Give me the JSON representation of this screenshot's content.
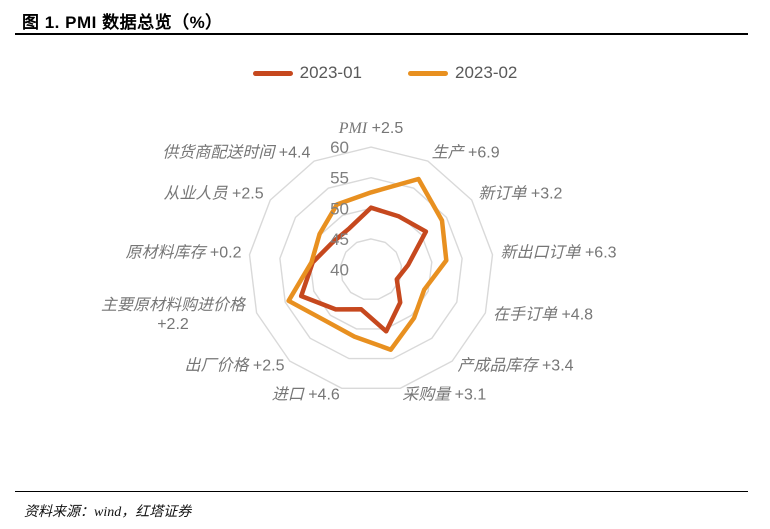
{
  "figure": {
    "title": "图 1. PMI 数据总览（%）",
    "source": "资料来源：wind，红塔证券"
  },
  "legend": [
    {
      "label": "2023-01",
      "color": "#C6481E"
    },
    {
      "label": "2023-02",
      "color": "#E89020"
    }
  ],
  "chart_data": {
    "type": "radar",
    "categories": [
      {
        "name": "PMI",
        "delta": "+2.5"
      },
      {
        "name": "生产",
        "delta": "+6.9"
      },
      {
        "name": "新订单",
        "delta": "+3.2"
      },
      {
        "name": "新出口订单",
        "delta": "+6.3"
      },
      {
        "name": "在手订单",
        "delta": "+4.8"
      },
      {
        "name": "产成品库存",
        "delta": "+3.4"
      },
      {
        "name": "采购量",
        "delta": "+3.1"
      },
      {
        "name": "进口",
        "delta": "+4.6"
      },
      {
        "name": "出厂价格",
        "delta": "+2.5"
      },
      {
        "name": "主要原材料购进价格",
        "delta": "+2.2"
      },
      {
        "name": "原材料库存",
        "delta": "+0.2"
      },
      {
        "name": "从业人员",
        "delta": "+2.5"
      },
      {
        "name": "供货商配送时间",
        "delta": "+4.4"
      }
    ],
    "series": [
      {
        "name": "2023-01",
        "color": "#C6481E",
        "values": [
          50.1,
          49.8,
          50.9,
          46.1,
          44.5,
          47.2,
          50.4,
          46.7,
          48.7,
          52.2,
          49.6,
          47.7,
          47.6
        ]
      },
      {
        "name": "2023-02",
        "color": "#E89020",
        "values": [
          52.6,
          56.7,
          54.1,
          52.4,
          49.3,
          50.6,
          53.5,
          51.3,
          51.2,
          54.4,
          49.8,
          50.2,
          52.0
        ]
      }
    ],
    "axis": {
      "min": 40,
      "max": 60,
      "ticks": [
        40,
        45,
        50,
        55,
        60
      ]
    },
    "grid_color": "#D9D9D9",
    "grid": "rings-only",
    "legend_position": "top-center"
  }
}
